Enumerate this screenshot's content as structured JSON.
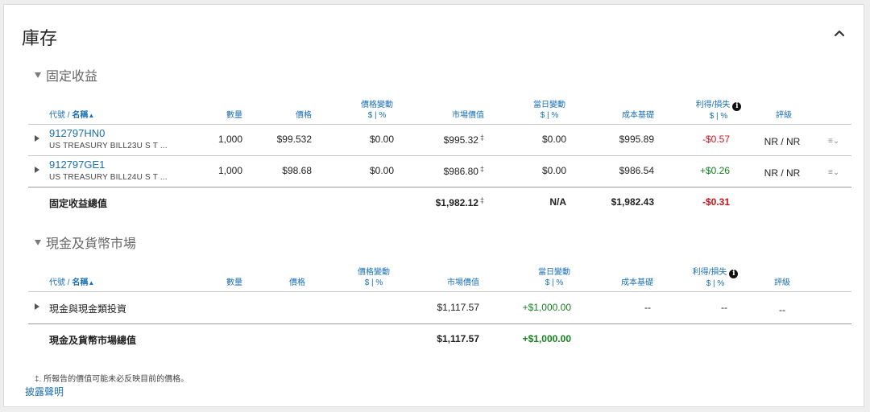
{
  "title": "庫存",
  "sections": {
    "fixed_income": {
      "heading": "固定收益",
      "headers": {
        "symbol": "代號 / ",
        "name": "名稱",
        "sort_arrow": "▲",
        "qty": "數量",
        "price": "價格",
        "price_change": "價格變動",
        "price_change_unit": "$ | %",
        "market_value": "市場價值",
        "day_change": "當日變動",
        "day_change_unit": "$ | %",
        "cost_basis": "成本基礎",
        "gain_loss": "利得/損失",
        "gain_loss_unit": "$ | %",
        "rating": "評級"
      },
      "rows": [
        {
          "symbol": "912797HN0",
          "description": "US TREASURY BILL23U S T ...",
          "qty": "1,000",
          "price": "$99.532",
          "price_change": "$0.00",
          "market_value": "$995.32",
          "dagger": "‡",
          "day_change": "$0.00",
          "cost_basis": "$995.89",
          "gain_loss": "-$0.57",
          "rating": "NR / NR",
          "menu": "≡⌄"
        },
        {
          "symbol": "912797GE1",
          "description": "US TREASURY BILL24U S T ...",
          "qty": "1,000",
          "price": "$98.68",
          "price_change": "$0.00",
          "market_value": "$986.80",
          "dagger": "‡",
          "day_change": "$0.00",
          "cost_basis": "$986.54",
          "gain_loss": "+$0.26",
          "rating": "NR / NR",
          "menu": "≡⌄"
        }
      ],
      "total": {
        "label": "固定收益總值",
        "market_value": "$1,982.12",
        "dagger": "‡",
        "day_change": "N/A",
        "cost_basis": "$1,982.43",
        "gain_loss": "-$0.31"
      }
    },
    "cash": {
      "heading": "現金及貨幣市場",
      "headers": {
        "symbol": "代號 / ",
        "name": "名稱",
        "sort_arrow": "▲",
        "qty": "數量",
        "price": "價格",
        "price_change": "價格變動",
        "price_change_unit": "$ | %",
        "market_value": "市場價值",
        "day_change": "當日變動",
        "day_change_unit": "$ | %",
        "cost_basis": "成本基礎",
        "gain_loss": "利得/損失",
        "gain_loss_unit": "$ | %",
        "rating": "評級"
      },
      "rows": [
        {
          "name": "現金與現金類投資",
          "market_value": "$1,117.57",
          "day_change": "+$1,000.00",
          "cost_basis": "--",
          "gain_loss": "--",
          "rating": "--"
        }
      ],
      "total": {
        "label": "現金及貨幣市場總值",
        "market_value": "$1,117.57",
        "day_change": "+$1,000.00"
      }
    }
  },
  "footnote": "‡. 所報告的價值可能未必反映目前的價格。",
  "disclosure_link": "披露聲明",
  "icons": {
    "collapse": "chevron-up-icon",
    "info": "info-icon",
    "expand_row": "caret-right-icon",
    "row_menu": "row-menu-icon"
  },
  "colors": {
    "link": "#1a6fb0",
    "negative": "#d0121b",
    "positive": "#17801f"
  }
}
